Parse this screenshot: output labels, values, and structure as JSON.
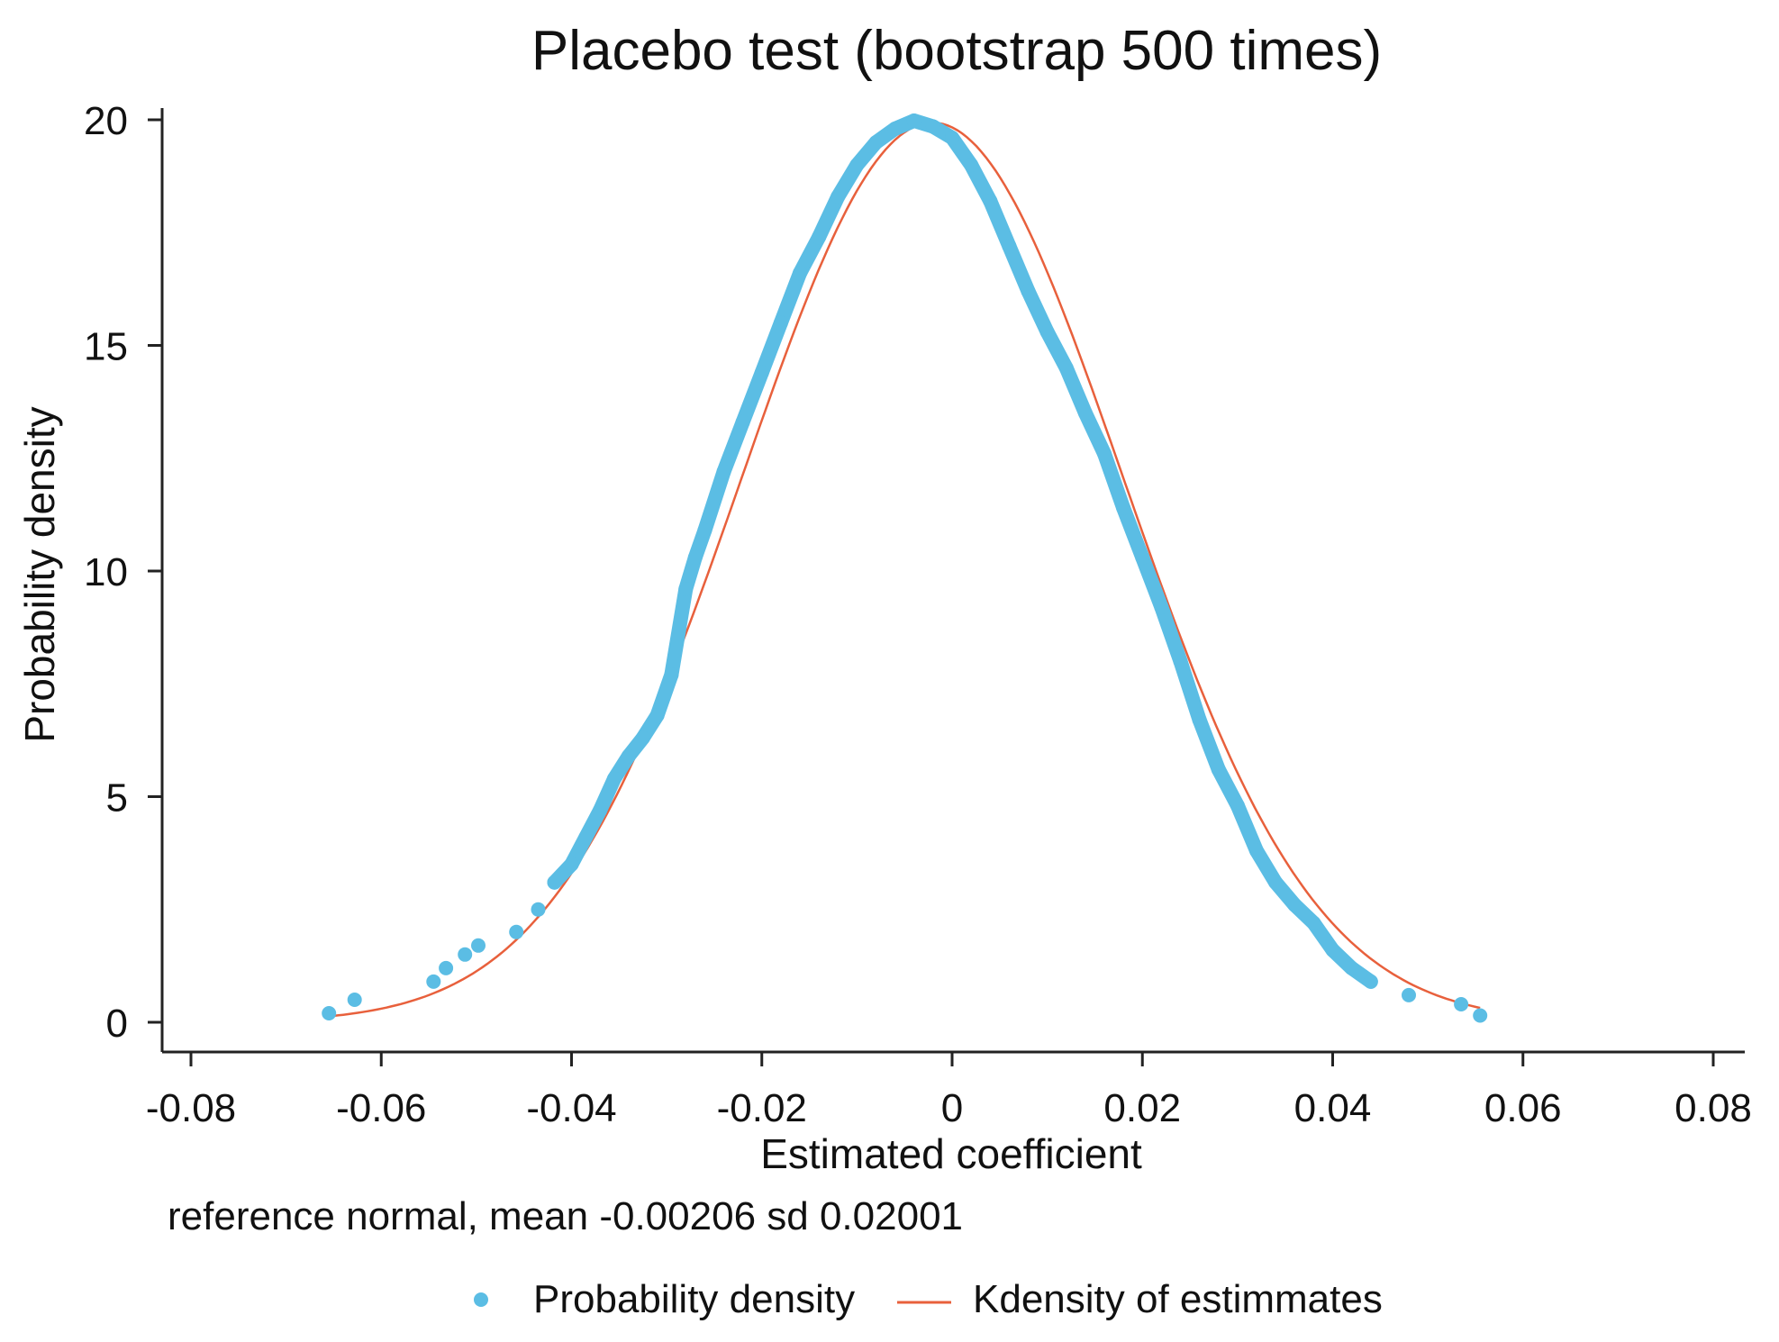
{
  "chart_data": {
    "type": "line",
    "title": "Placebo test (bootstrap 500 times)",
    "xlabel": "Estimated coefficient",
    "ylabel": "Probability density",
    "note": "reference normal, mean -0.00206 sd 0.02001",
    "xlim": [
      -0.08,
      0.08
    ],
    "ylim": [
      0,
      20
    ],
    "xticks": [
      -0.08,
      -0.06,
      -0.04,
      -0.02,
      0,
      0.02,
      0.04,
      0.06,
      0.08
    ],
    "xtick_labels": [
      "-0.08",
      "-0.06",
      "-0.04",
      "-0.02",
      "0",
      "0.02",
      "0.04",
      "0.06",
      "0.08"
    ],
    "yticks": [
      0,
      5,
      10,
      15,
      20
    ],
    "ytick_labels": [
      "0",
      "5",
      "10",
      "15",
      "20"
    ],
    "legend": [
      "Probability density",
      "Kdensity of estimmates"
    ],
    "legend_position": "bottom",
    "series": [
      {
        "name": "Probability density",
        "kind": "scatter",
        "color": "#5bbde4",
        "x": [
          -0.0655,
          -0.0628,
          -0.0545,
          -0.0532,
          -0.0512,
          -0.0498,
          -0.0458,
          -0.0435,
          -0.0418,
          -0.04,
          -0.0385,
          -0.037,
          -0.0355,
          -0.034,
          -0.0325,
          -0.031,
          -0.0295,
          -0.028,
          -0.027,
          -0.026,
          -0.024,
          -0.022,
          -0.02,
          -0.018,
          -0.016,
          -0.014,
          -0.012,
          -0.01,
          -0.008,
          -0.006,
          -0.004,
          -0.002,
          0.0,
          0.002,
          0.004,
          0.006,
          0.008,
          0.01,
          0.012,
          0.014,
          0.016,
          0.018,
          0.02,
          0.022,
          0.024,
          0.026,
          0.028,
          0.03,
          0.032,
          0.034,
          0.036,
          0.038,
          0.04,
          0.042,
          0.044,
          0.048,
          0.0535,
          0.0555
        ],
        "y": [
          0.2,
          0.5,
          0.9,
          1.2,
          1.5,
          1.7,
          2.0,
          2.5,
          3.1,
          3.5,
          4.1,
          4.7,
          5.4,
          5.9,
          6.3,
          6.8,
          7.7,
          9.6,
          10.3,
          10.9,
          12.2,
          13.3,
          14.4,
          15.5,
          16.6,
          17.4,
          18.3,
          19.0,
          19.5,
          19.8,
          19.98,
          19.85,
          19.6,
          19.0,
          18.2,
          17.2,
          16.2,
          15.3,
          14.5,
          13.5,
          12.6,
          11.4,
          10.3,
          9.2,
          8.0,
          6.7,
          5.6,
          4.8,
          3.8,
          3.1,
          2.6,
          2.2,
          1.6,
          1.2,
          0.9,
          0.6,
          0.4,
          0.15
        ]
      },
      {
        "name": "Kdensity of estimmates",
        "kind": "line",
        "color": "#e8603c",
        "mean": -0.00206,
        "sd": 0.02001,
        "x_range": [
          -0.0655,
          0.0555
        ]
      }
    ]
  }
}
